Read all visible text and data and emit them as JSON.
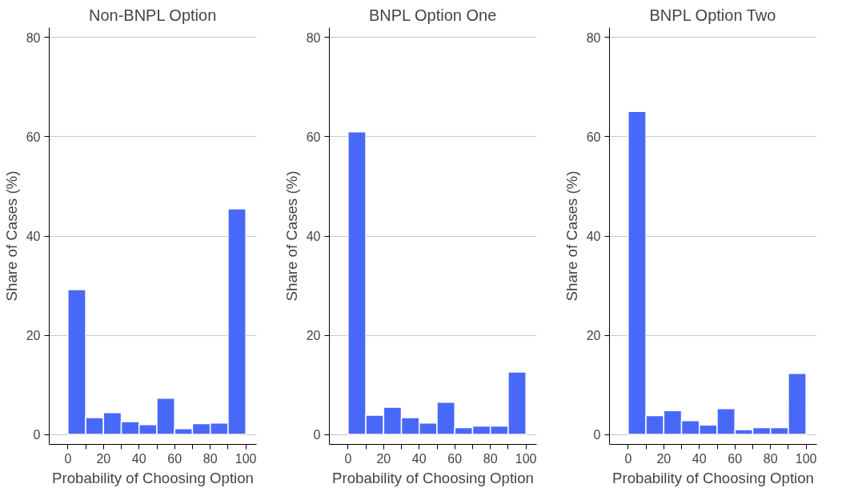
{
  "chart_data": [
    {
      "type": "histogram",
      "title": "Non-BNPL Option",
      "xlabel": "Probability of Choosing Option",
      "ylabel": "Share of Cases (%)",
      "bins": [
        0,
        10,
        20,
        30,
        40,
        50,
        60,
        70,
        80,
        90,
        100
      ],
      "values": [
        29.2,
        3.4,
        4.4,
        2.6,
        2.0,
        7.3,
        1.2,
        2.2,
        2.3,
        45.5
      ],
      "color": "#4869f8",
      "xlim": [
        -10.5,
        106
      ],
      "xticks": [
        0,
        {
          "value": 10,
          "label": null
        },
        20,
        {
          "value": 30,
          "label": null
        },
        40,
        {
          "value": 50,
          "label": null
        },
        60,
        {
          "value": 70,
          "label": null
        },
        80,
        {
          "value": 90,
          "label": null
        },
        100
      ],
      "ylim": [
        -2,
        82
      ],
      "yticks": [
        0,
        20,
        40,
        60,
        80
      ],
      "grid": "y"
    },
    {
      "type": "histogram",
      "title": "BNPL Option One",
      "xlabel": "Probability of Choosing Option",
      "ylabel": "Share of Cases (%)",
      "bins": [
        0,
        10,
        20,
        30,
        40,
        50,
        60,
        70,
        80,
        90,
        100
      ],
      "values": [
        61.0,
        3.9,
        5.5,
        3.4,
        2.3,
        6.5,
        1.4,
        1.7,
        1.7,
        12.6
      ],
      "color": "#4869f8",
      "xlim": [
        -10.5,
        106
      ],
      "xticks": [
        0,
        {
          "value": 10,
          "label": null
        },
        20,
        {
          "value": 30,
          "label": null
        },
        40,
        {
          "value": 50,
          "label": null
        },
        60,
        {
          "value": 70,
          "label": null
        },
        80,
        {
          "value": 90,
          "label": null
        },
        100
      ],
      "ylim": [
        -2,
        82
      ],
      "yticks": [
        0,
        20,
        40,
        60,
        80
      ],
      "grid": "y"
    },
    {
      "type": "histogram",
      "title": "BNPL Option Two",
      "xlabel": "Probability of Choosing Option",
      "ylabel": "Share of Cases (%)",
      "bins": [
        0,
        10,
        20,
        30,
        40,
        50,
        60,
        70,
        80,
        90,
        100
      ],
      "values": [
        65.1,
        3.8,
        4.8,
        2.8,
        1.9,
        5.2,
        1.0,
        1.4,
        1.4,
        12.3
      ],
      "color": "#4869f8",
      "xlim": [
        -10.5,
        106
      ],
      "xticks": [
        0,
        {
          "value": 10,
          "label": null
        },
        20,
        {
          "value": 30,
          "label": null
        },
        40,
        {
          "value": 50,
          "label": null
        },
        60,
        {
          "value": 70,
          "label": null
        },
        80,
        {
          "value": 90,
          "label": null
        },
        100
      ],
      "ylim": [
        -2,
        82
      ],
      "yticks": [
        0,
        20,
        40,
        60,
        80
      ],
      "grid": "y"
    }
  ]
}
